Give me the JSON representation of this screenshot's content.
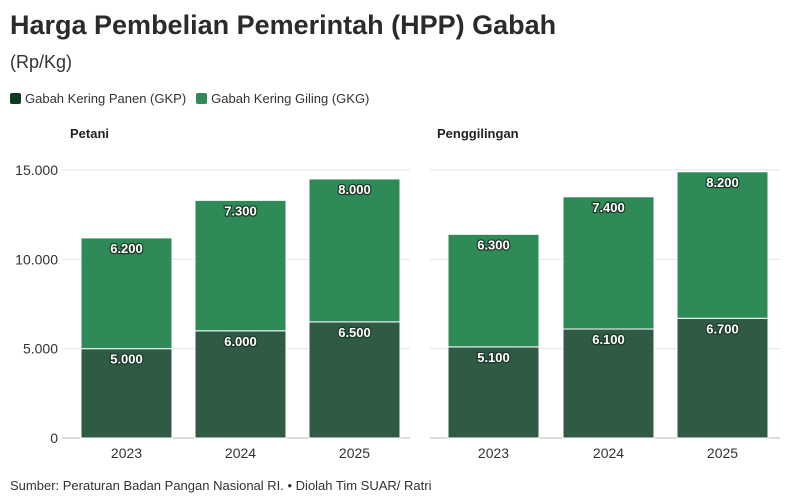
{
  "header": {
    "title": "Harga Pembelian Pemerintah (HPP) Gabah",
    "subtitle": "(Rp/Kg)"
  },
  "legend": [
    {
      "label": "Gabah Kering Panen (GKP)",
      "color": "#2f5a44"
    },
    {
      "label": "Gabah Kering Giling (GKG)",
      "color": "#2e8b57"
    }
  ],
  "footer": {
    "source": "Sumber: Peraturan Badan Pangan Nasional RI. • Diolah Tim SUAR/ Ratri"
  },
  "chart_data": [
    {
      "type": "bar",
      "stacked": true,
      "title": "Petani",
      "categories": [
        "2023",
        "2024",
        "2025"
      ],
      "series": [
        {
          "name": "Gabah Kering Panen (GKP)",
          "values": [
            5000,
            6000,
            6500
          ],
          "labels": [
            "5.000",
            "6.000",
            "6.500"
          ],
          "color": "#2f5a44"
        },
        {
          "name": "Gabah Kering Giling (GKG)",
          "values": [
            6200,
            7300,
            8000
          ],
          "labels": [
            "6.200",
            "7.300",
            "8.000"
          ],
          "color": "#2e8b57"
        }
      ],
      "ylim": [
        0,
        15000
      ],
      "yticks": [
        0,
        5000,
        10000,
        15000
      ],
      "ytick_labels": [
        "0",
        "5.000",
        "10.000",
        "15.000"
      ],
      "grid": true
    },
    {
      "type": "bar",
      "stacked": true,
      "title": "Penggilingan",
      "categories": [
        "2023",
        "2024",
        "2025"
      ],
      "series": [
        {
          "name": "Gabah Kering Panen (GKP)",
          "values": [
            5100,
            6100,
            6700
          ],
          "labels": [
            "5.100",
            "6.100",
            "6.700"
          ],
          "color": "#2f5a44"
        },
        {
          "name": "Gabah Kering Giling (GKG)",
          "values": [
            6300,
            7400,
            8200
          ],
          "labels": [
            "6.300",
            "7.400",
            "8.200"
          ],
          "color": "#2e8b57"
        }
      ],
      "ylim": [
        0,
        15000
      ],
      "yticks": [
        0,
        5000,
        10000,
        15000
      ],
      "ytick_labels": [
        "0",
        "5.000",
        "10.000",
        "15.000"
      ],
      "grid": true
    }
  ]
}
